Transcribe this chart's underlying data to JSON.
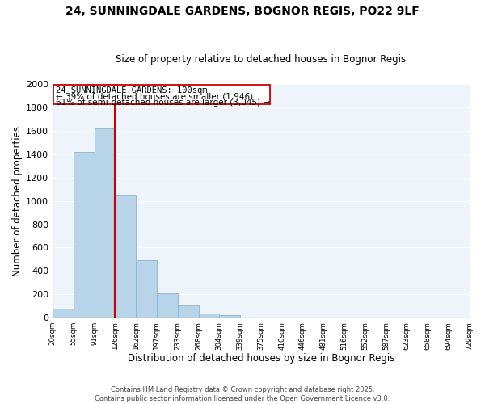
{
  "title": "24, SUNNINGDALE GARDENS, BOGNOR REGIS, PO22 9LF",
  "subtitle": "Size of property relative to detached houses in Bognor Regis",
  "xlabel": "Distribution of detached houses by size in Bognor Regis",
  "ylabel": "Number of detached properties",
  "bar_color": "#b8d4e8",
  "bar_edge_color": "#8ab4d0",
  "plot_bg_color": "#eef4fa",
  "grid_color": "#ffffff",
  "annotation_box_edge": "#cc0000",
  "annotation_line_color": "#cc0000",
  "annotation_text_line1": "24 SUNNINGDALE GARDENS: 100sqm",
  "annotation_text_line2": "← 39% of detached houses are smaller (1,946)",
  "annotation_text_line3": "61% of semi-detached houses are larger (3,045) →",
  "bin_labels": [
    "20sqm",
    "55sqm",
    "91sqm",
    "126sqm",
    "162sqm",
    "197sqm",
    "233sqm",
    "268sqm",
    "304sqm",
    "339sqm",
    "375sqm",
    "410sqm",
    "446sqm",
    "481sqm",
    "516sqm",
    "552sqm",
    "587sqm",
    "623sqm",
    "658sqm",
    "694sqm",
    "729sqm"
  ],
  "bar_heights": [
    80,
    1420,
    1620,
    1050,
    490,
    205,
    105,
    38,
    18,
    0,
    0,
    0,
    0,
    0,
    0,
    0,
    0,
    0,
    0,
    0
  ],
  "ylim": [
    0,
    2000
  ],
  "yticks": [
    0,
    200,
    400,
    600,
    800,
    1000,
    1200,
    1400,
    1600,
    1800,
    2000
  ],
  "red_line_x": 2.5,
  "footer_line1": "Contains HM Land Registry data © Crown copyright and database right 2025.",
  "footer_line2": "Contains public sector information licensed under the Open Government Licence v3.0.",
  "background_color": "#ffffff"
}
